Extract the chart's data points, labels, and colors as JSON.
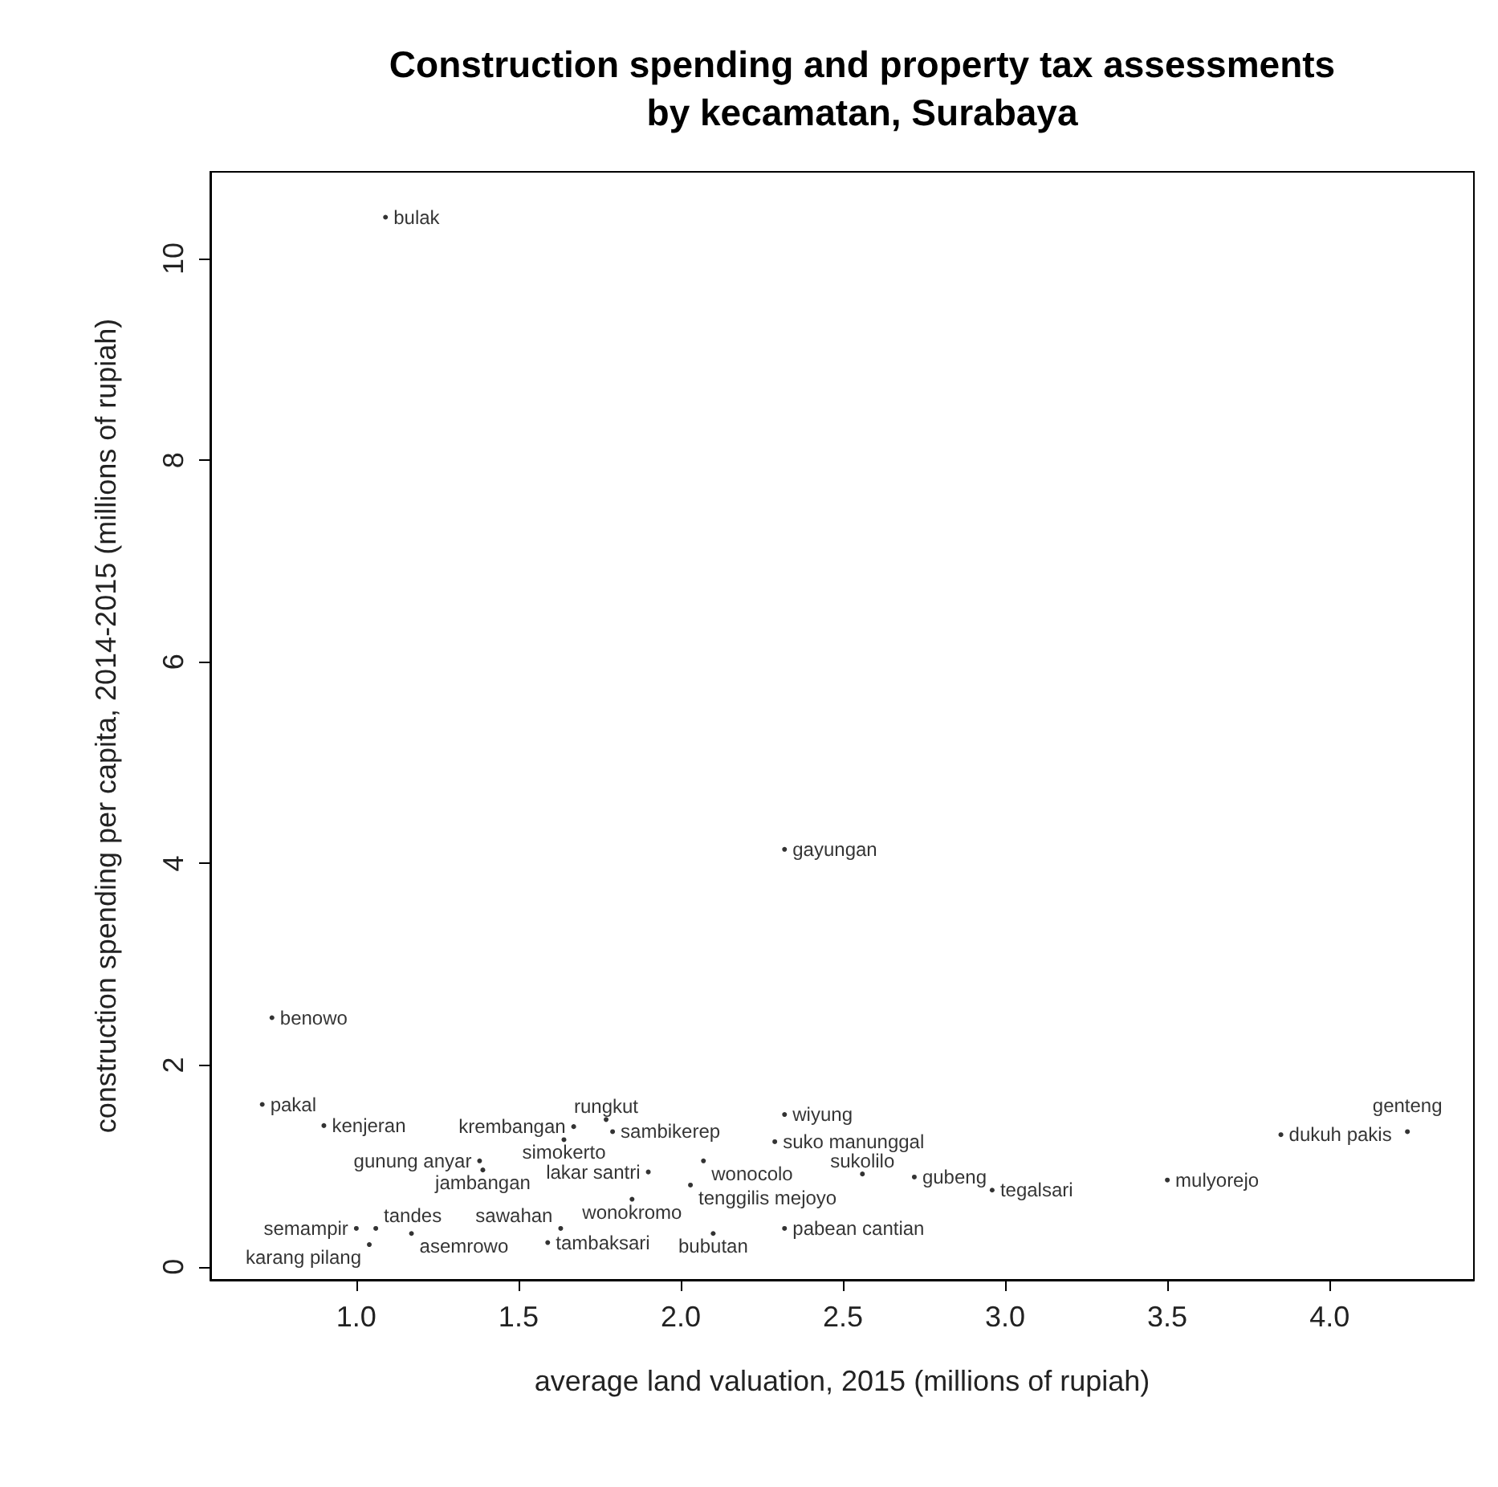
{
  "chart_data": {
    "type": "scatter",
    "title": "Construction spending and property tax assessments\nby kecamatan, Surabaya",
    "xlabel": "average land valuation, 2015 (millions of rupiah)",
    "ylabel": "construction spending per capita, 2014-2015 (millions of rupiah)",
    "x": [
      1.09,
      2.32,
      0.74,
      0.71,
      0.9,
      1.67,
      1.77,
      1.79,
      1.64,
      2.29,
      2.32,
      1.38,
      1.39,
      1.9,
      2.07,
      2.03,
      1.85,
      2.56,
      2.72,
      2.96,
      3.5,
      3.85,
      4.24,
      1.0,
      1.06,
      1.17,
      1.04,
      1.63,
      1.59,
      2.1,
      2.32
    ],
    "values": [
      10.41,
      4.14,
      2.47,
      1.61,
      1.4,
      1.39,
      1.46,
      1.34,
      1.26,
      1.24,
      1.51,
      1.05,
      0.96,
      0.94,
      1.05,
      0.81,
      0.67,
      0.92,
      0.89,
      0.76,
      0.86,
      1.31,
      1.34,
      0.38,
      0.38,
      0.33,
      0.22,
      0.38,
      0.24,
      0.33,
      0.38
    ],
    "value_labels": [
      "bulak",
      "gayungan",
      "benowo",
      "pakal",
      "kenjeran",
      "krembangan",
      "rungkut",
      "sambikerep",
      "simokerto",
      "suko manunggal",
      "wiyung",
      "gunung anyar",
      "jambangan",
      "lakar santri",
      "wonocolo",
      "tenggilis mejoyo",
      "wonokromo",
      "sukolilo",
      "gubeng",
      "tegalsari",
      "mulyorejo",
      "dukuh pakis",
      "genteng",
      "semampir",
      "tandes",
      "asemrowo",
      "karang pilang",
      "sawahan",
      "tambaksari",
      "bubutan",
      "pabean cantian"
    ],
    "color": "#000000",
    "marker": "circle",
    "grid": false,
    "xlim": [
      0.55,
      4.445
    ],
    "xticks": [
      {
        "value": 1,
        "label": "1.0"
      },
      {
        "value": 1.5,
        "label": "1.5"
      },
      {
        "value": 2,
        "label": "2.0"
      },
      {
        "value": 2.5,
        "label": "2.5"
      },
      {
        "value": 3,
        "label": "3.0"
      },
      {
        "value": 3.5,
        "label": "3.5"
      },
      {
        "value": 4,
        "label": "4.0"
      }
    ],
    "ylim": [
      -0.13,
      10.86
    ],
    "yticks": [
      0,
      2,
      4,
      6,
      8,
      10
    ]
  }
}
